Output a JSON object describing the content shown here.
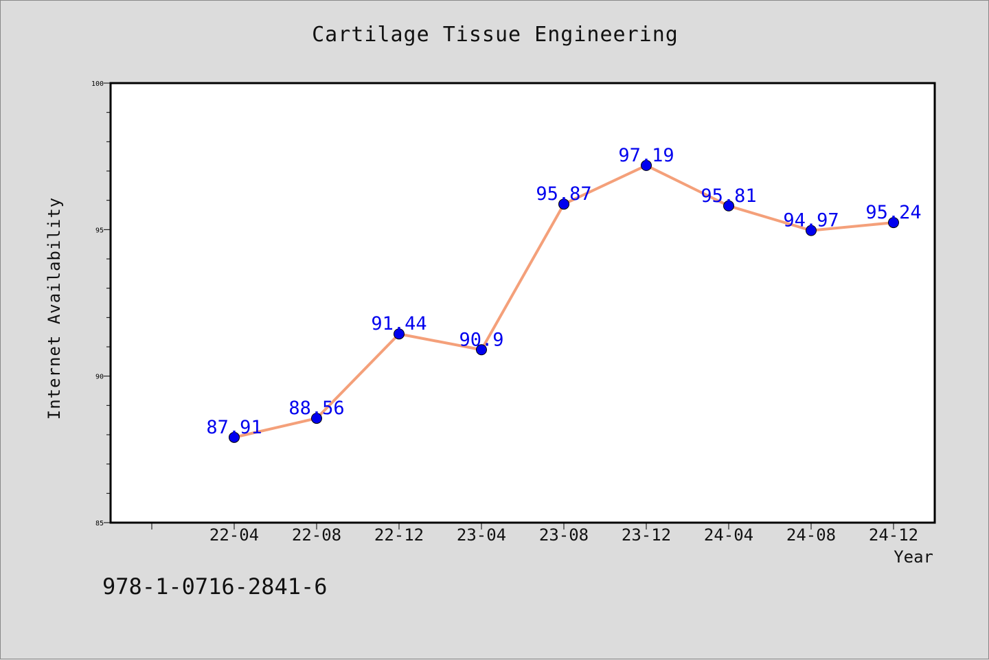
{
  "chart_data": {
    "type": "line",
    "title": "Cartilage Tissue Engineering",
    "xlabel": "Year",
    "ylabel": "Internet Availability",
    "categories": [
      "22-04",
      "22-08",
      "22-12",
      "23-04",
      "23-08",
      "23-12",
      "24-04",
      "24-08",
      "24-12"
    ],
    "values": [
      87.91,
      88.56,
      91.44,
      90.9,
      95.87,
      97.19,
      95.81,
      94.97,
      95.24
    ],
    "data_labels": [
      "87.91",
      "88.56",
      "91.44",
      "90.9",
      "95.87",
      "97.19",
      "95.81",
      "94.97",
      "95.24"
    ],
    "ylim": [
      85,
      100
    ],
    "yticks": [
      "85",
      "90",
      "95",
      "100"
    ],
    "grid": false,
    "colors": {
      "line": "#f4a07a",
      "marker": "#0000ee",
      "label": "#0000ee",
      "background": "#dcdcdc",
      "plot_area": "#ffffff"
    }
  },
  "annotation": "978-1-0716-2841-6"
}
